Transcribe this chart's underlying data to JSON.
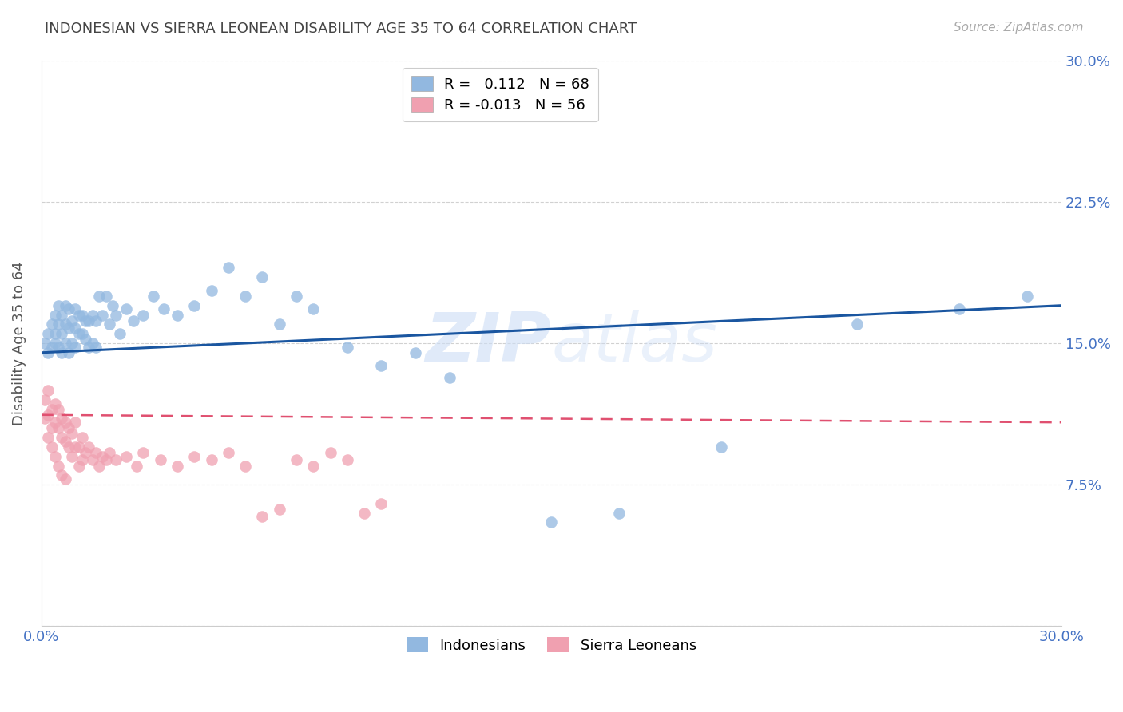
{
  "title": "INDONESIAN VS SIERRA LEONEAN DISABILITY AGE 35 TO 64 CORRELATION CHART",
  "source": "Source: ZipAtlas.com",
  "ylabel": "Disability Age 35 to 64",
  "xlim": [
    0.0,
    0.3
  ],
  "ylim": [
    0.0,
    0.3
  ],
  "legend_R1": "0.112",
  "legend_N1": "68",
  "legend_R2": "-0.013",
  "legend_N2": "56",
  "color_blue": "#92b8e0",
  "color_pink": "#f0a0b0",
  "line_color_blue": "#1a56a0",
  "line_color_pink": "#e05070",
  "watermark_color": "#ccddf5",
  "background_color": "#ffffff",
  "grid_color": "#cccccc",
  "title_color": "#444444",
  "axis_label_color": "#555555",
  "tick_color": "#4472c4",
  "indonesian_x": [
    0.001,
    0.002,
    0.002,
    0.003,
    0.003,
    0.004,
    0.004,
    0.004,
    0.005,
    0.005,
    0.005,
    0.006,
    0.006,
    0.006,
    0.007,
    0.007,
    0.007,
    0.008,
    0.008,
    0.008,
    0.009,
    0.009,
    0.01,
    0.01,
    0.01,
    0.011,
    0.011,
    0.012,
    0.012,
    0.013,
    0.013,
    0.014,
    0.014,
    0.015,
    0.015,
    0.016,
    0.016,
    0.017,
    0.018,
    0.019,
    0.02,
    0.021,
    0.022,
    0.023,
    0.025,
    0.027,
    0.03,
    0.033,
    0.036,
    0.04,
    0.045,
    0.05,
    0.055,
    0.06,
    0.065,
    0.07,
    0.075,
    0.08,
    0.09,
    0.1,
    0.11,
    0.12,
    0.15,
    0.17,
    0.2,
    0.24,
    0.27,
    0.29
  ],
  "indonesian_y": [
    0.15,
    0.145,
    0.155,
    0.148,
    0.16,
    0.15,
    0.155,
    0.165,
    0.148,
    0.16,
    0.17,
    0.145,
    0.155,
    0.165,
    0.15,
    0.16,
    0.17,
    0.145,
    0.158,
    0.168,
    0.15,
    0.162,
    0.148,
    0.158,
    0.168,
    0.155,
    0.165,
    0.155,
    0.165,
    0.152,
    0.162,
    0.148,
    0.162,
    0.15,
    0.165,
    0.148,
    0.162,
    0.175,
    0.165,
    0.175,
    0.16,
    0.17,
    0.165,
    0.155,
    0.168,
    0.162,
    0.165,
    0.175,
    0.168,
    0.165,
    0.17,
    0.178,
    0.19,
    0.175,
    0.185,
    0.16,
    0.175,
    0.168,
    0.148,
    0.138,
    0.145,
    0.132,
    0.055,
    0.06,
    0.095,
    0.16,
    0.168,
    0.175
  ],
  "sierraleone_x": [
    0.001,
    0.001,
    0.002,
    0.002,
    0.002,
    0.003,
    0.003,
    0.003,
    0.004,
    0.004,
    0.004,
    0.005,
    0.005,
    0.005,
    0.006,
    0.006,
    0.006,
    0.007,
    0.007,
    0.007,
    0.008,
    0.008,
    0.009,
    0.009,
    0.01,
    0.01,
    0.011,
    0.011,
    0.012,
    0.012,
    0.013,
    0.014,
    0.015,
    0.016,
    0.017,
    0.018,
    0.019,
    0.02,
    0.022,
    0.025,
    0.028,
    0.03,
    0.035,
    0.04,
    0.045,
    0.05,
    0.055,
    0.06,
    0.065,
    0.07,
    0.075,
    0.08,
    0.085,
    0.09,
    0.095,
    0.1
  ],
  "sierraleone_y": [
    0.11,
    0.12,
    0.1,
    0.112,
    0.125,
    0.105,
    0.115,
    0.095,
    0.108,
    0.118,
    0.09,
    0.105,
    0.115,
    0.085,
    0.1,
    0.11,
    0.08,
    0.098,
    0.108,
    0.078,
    0.095,
    0.105,
    0.09,
    0.102,
    0.095,
    0.108,
    0.085,
    0.095,
    0.088,
    0.1,
    0.092,
    0.095,
    0.088,
    0.092,
    0.085,
    0.09,
    0.088,
    0.092,
    0.088,
    0.09,
    0.085,
    0.092,
    0.088,
    0.085,
    0.09,
    0.088,
    0.092,
    0.085,
    0.058,
    0.062,
    0.088,
    0.085,
    0.092,
    0.088,
    0.06,
    0.065
  ]
}
